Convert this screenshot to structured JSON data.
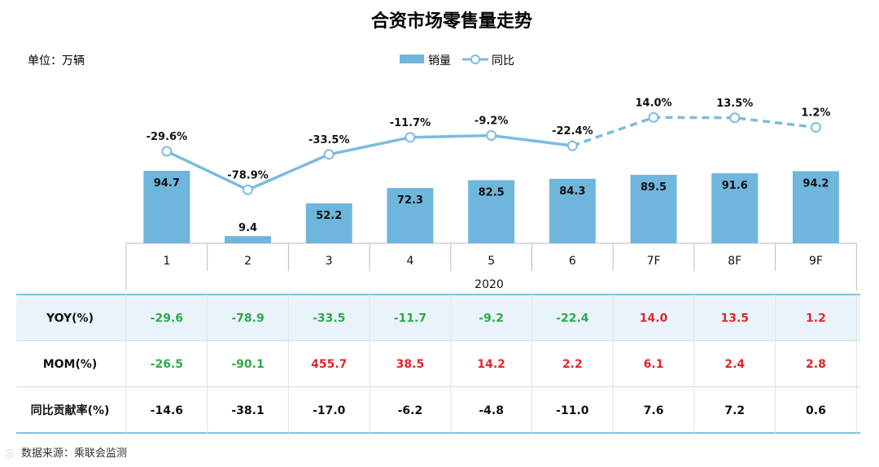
{
  "title": "合资市场零售量走势",
  "unit_label": "单位：万辆",
  "legend": {
    "bar": "销量",
    "line": "同比"
  },
  "colors": {
    "bar": "#6fb6dc",
    "line": "#7dbbe0",
    "positive": "#e0262b",
    "negative": "#2aaa47",
    "neutral": "#111111",
    "band": "#e9f4fa",
    "rule": "#7fbfe3"
  },
  "chart_data": {
    "type": "bar",
    "categories": [
      "1",
      "2",
      "3",
      "4",
      "5",
      "6",
      "7F",
      "8F",
      "9F"
    ],
    "group_label": "2020",
    "forecast_from_index": 6,
    "series": [
      {
        "name": "销量",
        "type": "bar",
        "values": [
          94.7,
          9.4,
          52.2,
          72.3,
          82.5,
          84.3,
          89.5,
          91.6,
          94.2
        ],
        "labels": [
          "94.7",
          "9.4",
          "52.2",
          "72.3",
          "82.5",
          "84.3",
          "89.5",
          "91.6",
          "94.2"
        ]
      },
      {
        "name": "同比",
        "type": "line",
        "values": [
          -29.6,
          -78.9,
          -33.5,
          -11.7,
          -9.2,
          -22.4,
          14.0,
          13.5,
          1.2
        ],
        "labels": [
          "-29.6%",
          "-78.9%",
          "-33.5%",
          "-11.7%",
          "-9.2%",
          "-22.4%",
          "14.0%",
          "13.5%",
          "1.2%"
        ]
      }
    ]
  },
  "table": {
    "rows": [
      {
        "label": "YOY(%)",
        "values": [
          "-29.6",
          "-78.9",
          "-33.5",
          "-11.7",
          "-9.2",
          "-22.4",
          "14.0",
          "13.5",
          "1.2"
        ],
        "colored": true,
        "shaded": true
      },
      {
        "label": "MOM(%)",
        "values": [
          "-26.5",
          "-90.1",
          "455.7",
          "38.5",
          "14.2",
          "2.2",
          "6.1",
          "2.4",
          "2.8"
        ],
        "colored": true,
        "shaded": false
      },
      {
        "label": "同比贡献率(%)",
        "values": [
          "-14.6",
          "-38.1",
          "-17.0",
          "-6.2",
          "-4.8",
          "-11.0",
          "7.6",
          "7.2",
          "0.6"
        ],
        "colored": false,
        "shaded": false
      }
    ]
  },
  "source": "数据来源：乘联会监测"
}
